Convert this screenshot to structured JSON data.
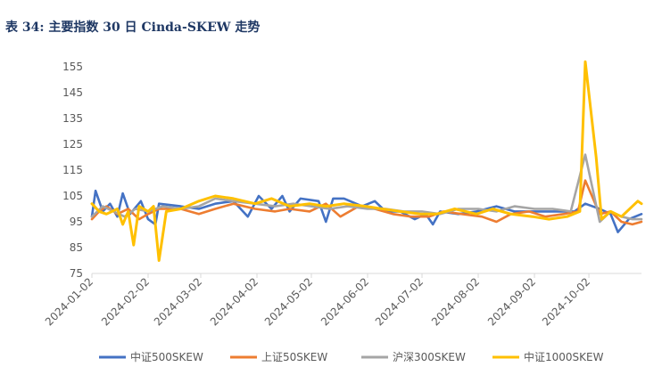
{
  "title": "表 34:  主要指数 30 日 Cinda-SKEW 走势",
  "chart_data": {
    "type": "line",
    "ylim": [
      75,
      160
    ],
    "yticks": [
      75,
      85,
      95,
      105,
      115,
      125,
      135,
      145,
      155
    ],
    "xticks": [
      "2024-01-02",
      "2024-02-02",
      "2024-03-02",
      "2024-04-02",
      "2024-05-02",
      "2024-06-02",
      "2024-07-02",
      "2024-08-02",
      "2024-09-02",
      "2024-10-02"
    ],
    "xrange": [
      "2024-01-02",
      "2024-10-31"
    ],
    "legend_position": "bottom",
    "series": [
      {
        "name": "中证500SKEW",
        "color": "#4472C4",
        "points": [
          [
            "2024-01-02",
            97
          ],
          [
            "2024-01-04",
            107
          ],
          [
            "2024-01-08",
            99
          ],
          [
            "2024-01-12",
            102
          ],
          [
            "2024-01-16",
            97
          ],
          [
            "2024-01-19",
            106
          ],
          [
            "2024-01-23",
            98
          ],
          [
            "2024-01-29",
            103
          ],
          [
            "2024-02-02",
            96
          ],
          [
            "2024-02-06",
            94
          ],
          [
            "2024-02-08",
            102
          ],
          [
            "2024-02-20",
            101
          ],
          [
            "2024-03-01",
            100
          ],
          [
            "2024-03-10",
            102
          ],
          [
            "2024-03-20",
            103
          ],
          [
            "2024-03-28",
            97
          ],
          [
            "2024-04-03",
            105
          ],
          [
            "2024-04-10",
            100
          ],
          [
            "2024-04-16",
            105
          ],
          [
            "2024-04-20",
            99
          ],
          [
            "2024-04-26",
            104
          ],
          [
            "2024-05-06",
            103
          ],
          [
            "2024-05-10",
            95
          ],
          [
            "2024-05-14",
            104
          ],
          [
            "2024-05-20",
            104
          ],
          [
            "2024-05-30",
            101
          ],
          [
            "2024-06-06",
            103
          ],
          [
            "2024-06-12",
            99
          ],
          [
            "2024-06-20",
            99
          ],
          [
            "2024-06-28",
            96
          ],
          [
            "2024-07-04",
            98
          ],
          [
            "2024-07-08",
            94
          ],
          [
            "2024-07-12",
            99
          ],
          [
            "2024-07-22",
            98
          ],
          [
            "2024-08-01",
            99
          ],
          [
            "2024-08-12",
            101
          ],
          [
            "2024-08-22",
            99
          ],
          [
            "2024-09-02",
            99
          ],
          [
            "2024-09-14",
            99
          ],
          [
            "2024-09-24",
            99
          ],
          [
            "2024-09-30",
            102
          ],
          [
            "2024-10-08",
            100
          ],
          [
            "2024-10-14",
            98
          ],
          [
            "2024-10-18",
            91
          ],
          [
            "2024-10-24",
            96
          ],
          [
            "2024-10-31",
            98
          ]
        ]
      },
      {
        "name": "上证50SKEW",
        "color": "#ED7D31",
        "points": [
          [
            "2024-01-02",
            96
          ],
          [
            "2024-01-06",
            99
          ],
          [
            "2024-01-10",
            101
          ],
          [
            "2024-01-16",
            98
          ],
          [
            "2024-01-22",
            100
          ],
          [
            "2024-01-28",
            96
          ],
          [
            "2024-02-02",
            98
          ],
          [
            "2024-02-08",
            100
          ],
          [
            "2024-02-20",
            100
          ],
          [
            "2024-03-01",
            98
          ],
          [
            "2024-03-10",
            100
          ],
          [
            "2024-03-20",
            102
          ],
          [
            "2024-04-01",
            100
          ],
          [
            "2024-04-12",
            99
          ],
          [
            "2024-04-20",
            100
          ],
          [
            "2024-05-01",
            99
          ],
          [
            "2024-05-10",
            102
          ],
          [
            "2024-05-18",
            97
          ],
          [
            "2024-05-28",
            101
          ],
          [
            "2024-06-06",
            100
          ],
          [
            "2024-06-16",
            98
          ],
          [
            "2024-06-26",
            97
          ],
          [
            "2024-07-06",
            97
          ],
          [
            "2024-07-14",
            99
          ],
          [
            "2024-07-24",
            98
          ],
          [
            "2024-08-04",
            97
          ],
          [
            "2024-08-12",
            95
          ],
          [
            "2024-08-20",
            98
          ],
          [
            "2024-08-30",
            99
          ],
          [
            "2024-09-08",
            97
          ],
          [
            "2024-09-18",
            98
          ],
          [
            "2024-09-26",
            99
          ],
          [
            "2024-09-30",
            111
          ],
          [
            "2024-10-08",
            98
          ],
          [
            "2024-10-14",
            99
          ],
          [
            "2024-10-20",
            95
          ],
          [
            "2024-10-26",
            94
          ],
          [
            "2024-10-31",
            95
          ]
        ]
      },
      {
        "name": "沪深300SKEW",
        "color": "#A5A5A5",
        "points": [
          [
            "2024-01-02",
            97
          ],
          [
            "2024-01-08",
            101
          ],
          [
            "2024-01-14",
            99
          ],
          [
            "2024-01-20",
            97
          ],
          [
            "2024-01-26",
            100
          ],
          [
            "2024-02-02",
            99
          ],
          [
            "2024-02-10",
            101
          ],
          [
            "2024-02-20",
            100
          ],
          [
            "2024-03-01",
            101
          ],
          [
            "2024-03-10",
            104
          ],
          [
            "2024-03-20",
            103
          ],
          [
            "2024-04-01",
            102
          ],
          [
            "2024-04-12",
            101
          ],
          [
            "2024-04-22",
            102
          ],
          [
            "2024-05-02",
            101
          ],
          [
            "2024-05-12",
            100
          ],
          [
            "2024-05-22",
            101
          ],
          [
            "2024-06-02",
            100
          ],
          [
            "2024-06-12",
            100
          ],
          [
            "2024-06-22",
            99
          ],
          [
            "2024-07-02",
            99
          ],
          [
            "2024-07-12",
            98
          ],
          [
            "2024-07-22",
            100
          ],
          [
            "2024-08-02",
            100
          ],
          [
            "2024-08-12",
            99
          ],
          [
            "2024-08-22",
            101
          ],
          [
            "2024-09-02",
            100
          ],
          [
            "2024-09-12",
            100
          ],
          [
            "2024-09-22",
            99
          ],
          [
            "2024-09-30",
            121
          ],
          [
            "2024-10-08",
            95
          ],
          [
            "2024-10-14",
            99
          ],
          [
            "2024-10-20",
            97
          ],
          [
            "2024-10-26",
            96
          ],
          [
            "2024-10-31",
            96
          ]
        ]
      },
      {
        "name": "中证1000SKEW",
        "color": "#FFC000",
        "points": [
          [
            "2024-01-02",
            102
          ],
          [
            "2024-01-06",
            99
          ],
          [
            "2024-01-10",
            98
          ],
          [
            "2024-01-16",
            100
          ],
          [
            "2024-01-19",
            94
          ],
          [
            "2024-01-22",
            99
          ],
          [
            "2024-01-25",
            86
          ],
          [
            "2024-01-28",
            101
          ],
          [
            "2024-02-02",
            99
          ],
          [
            "2024-02-05",
            101
          ],
          [
            "2024-02-08",
            80
          ],
          [
            "2024-02-12",
            99
          ],
          [
            "2024-02-20",
            100
          ],
          [
            "2024-03-01",
            103
          ],
          [
            "2024-03-10",
            105
          ],
          [
            "2024-03-20",
            104
          ],
          [
            "2024-04-01",
            102
          ],
          [
            "2024-04-10",
            104
          ],
          [
            "2024-04-20",
            101
          ],
          [
            "2024-05-01",
            102
          ],
          [
            "2024-05-10",
            101
          ],
          [
            "2024-05-20",
            102
          ],
          [
            "2024-06-01",
            101
          ],
          [
            "2024-06-10",
            100
          ],
          [
            "2024-06-20",
            99
          ],
          [
            "2024-07-01",
            98
          ],
          [
            "2024-07-10",
            98
          ],
          [
            "2024-07-20",
            100
          ],
          [
            "2024-08-01",
            98
          ],
          [
            "2024-08-10",
            100
          ],
          [
            "2024-08-20",
            98
          ],
          [
            "2024-09-01",
            97
          ],
          [
            "2024-09-10",
            96
          ],
          [
            "2024-09-20",
            97
          ],
          [
            "2024-09-27",
            99
          ],
          [
            "2024-09-30",
            157
          ],
          [
            "2024-10-06",
            120
          ],
          [
            "2024-10-09",
            96
          ],
          [
            "2024-10-14",
            99
          ],
          [
            "2024-10-20",
            97
          ],
          [
            "2024-10-26",
            101
          ],
          [
            "2024-10-29",
            103
          ],
          [
            "2024-10-31",
            102
          ]
        ]
      }
    ]
  }
}
